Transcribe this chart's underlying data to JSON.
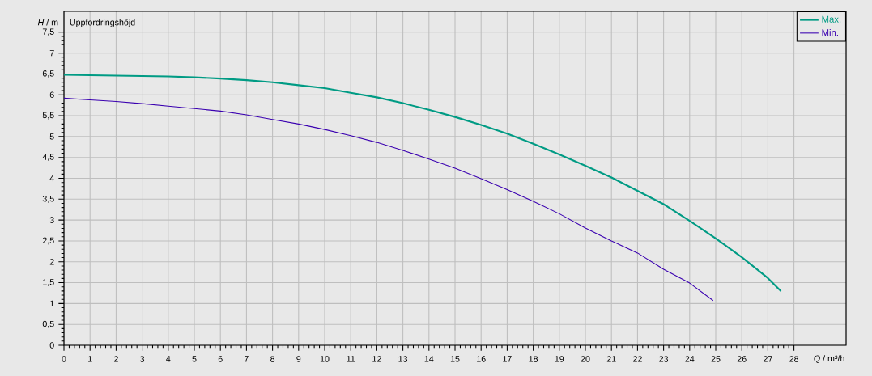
{
  "chart_data": {
    "type": "line",
    "title": "Uppfordringshöjd",
    "xlabel": "*Q* / m³/h",
    "ylabel": "*H* / m",
    "xlim": [
      0,
      30
    ],
    "ylim": [
      0,
      8
    ],
    "xticks": [
      0,
      1,
      2,
      3,
      4,
      5,
      6,
      7,
      8,
      9,
      10,
      11,
      12,
      13,
      14,
      15,
      16,
      17,
      18,
      19,
      20,
      21,
      22,
      23,
      24,
      25,
      26,
      27,
      28
    ],
    "yticks": [
      0,
      {
        "value": 0.5,
        "label": "0,5"
      },
      1,
      {
        "value": 1.5,
        "label": "1,5"
      },
      2,
      {
        "value": 2.5,
        "label": "2,5"
      },
      3,
      {
        "value": 3.5,
        "label": "3,5"
      },
      4,
      {
        "value": 4.5,
        "label": "4,5"
      },
      5,
      {
        "value": 5.5,
        "label": "5,5"
      },
      6,
      {
        "value": 6.5,
        "label": "6,5"
      },
      7,
      {
        "value": 7.5,
        "label": "7,5"
      }
    ],
    "grid": true,
    "legend": "top right",
    "marker": "none",
    "line_style": "solid",
    "series": [
      {
        "name": "Max.",
        "color": "#009b84",
        "x": [
          0,
          1,
          2,
          3,
          4,
          5,
          6,
          7,
          8,
          9,
          10,
          11,
          12,
          13,
          14,
          15,
          16,
          17,
          18,
          19,
          20,
          21,
          22,
          23,
          24,
          25,
          26,
          27,
          27.5
        ],
        "values": [
          6.48,
          6.47,
          6.46,
          6.45,
          6.44,
          6.42,
          6.39,
          6.35,
          6.3,
          6.23,
          6.16,
          6.05,
          5.94,
          5.8,
          5.64,
          5.47,
          5.28,
          5.07,
          4.83,
          4.57,
          4.3,
          4.02,
          3.7,
          3.38,
          2.98,
          2.56,
          2.11,
          1.61,
          1.3
        ]
      },
      {
        "name": "Min.",
        "color": "#3a00b0",
        "x": [
          0,
          1,
          2,
          3,
          4,
          5,
          6,
          7,
          8,
          9,
          10,
          11,
          12,
          13,
          14,
          15,
          16,
          17,
          18,
          19,
          20,
          21,
          22,
          23,
          24,
          24.9
        ],
        "values": [
          5.92,
          5.88,
          5.84,
          5.79,
          5.73,
          5.67,
          5.61,
          5.52,
          5.41,
          5.3,
          5.17,
          5.02,
          4.86,
          4.67,
          4.46,
          4.24,
          3.99,
          3.73,
          3.45,
          3.15,
          2.81,
          2.5,
          2.21,
          1.82,
          1.49,
          1.07
        ]
      }
    ]
  }
}
